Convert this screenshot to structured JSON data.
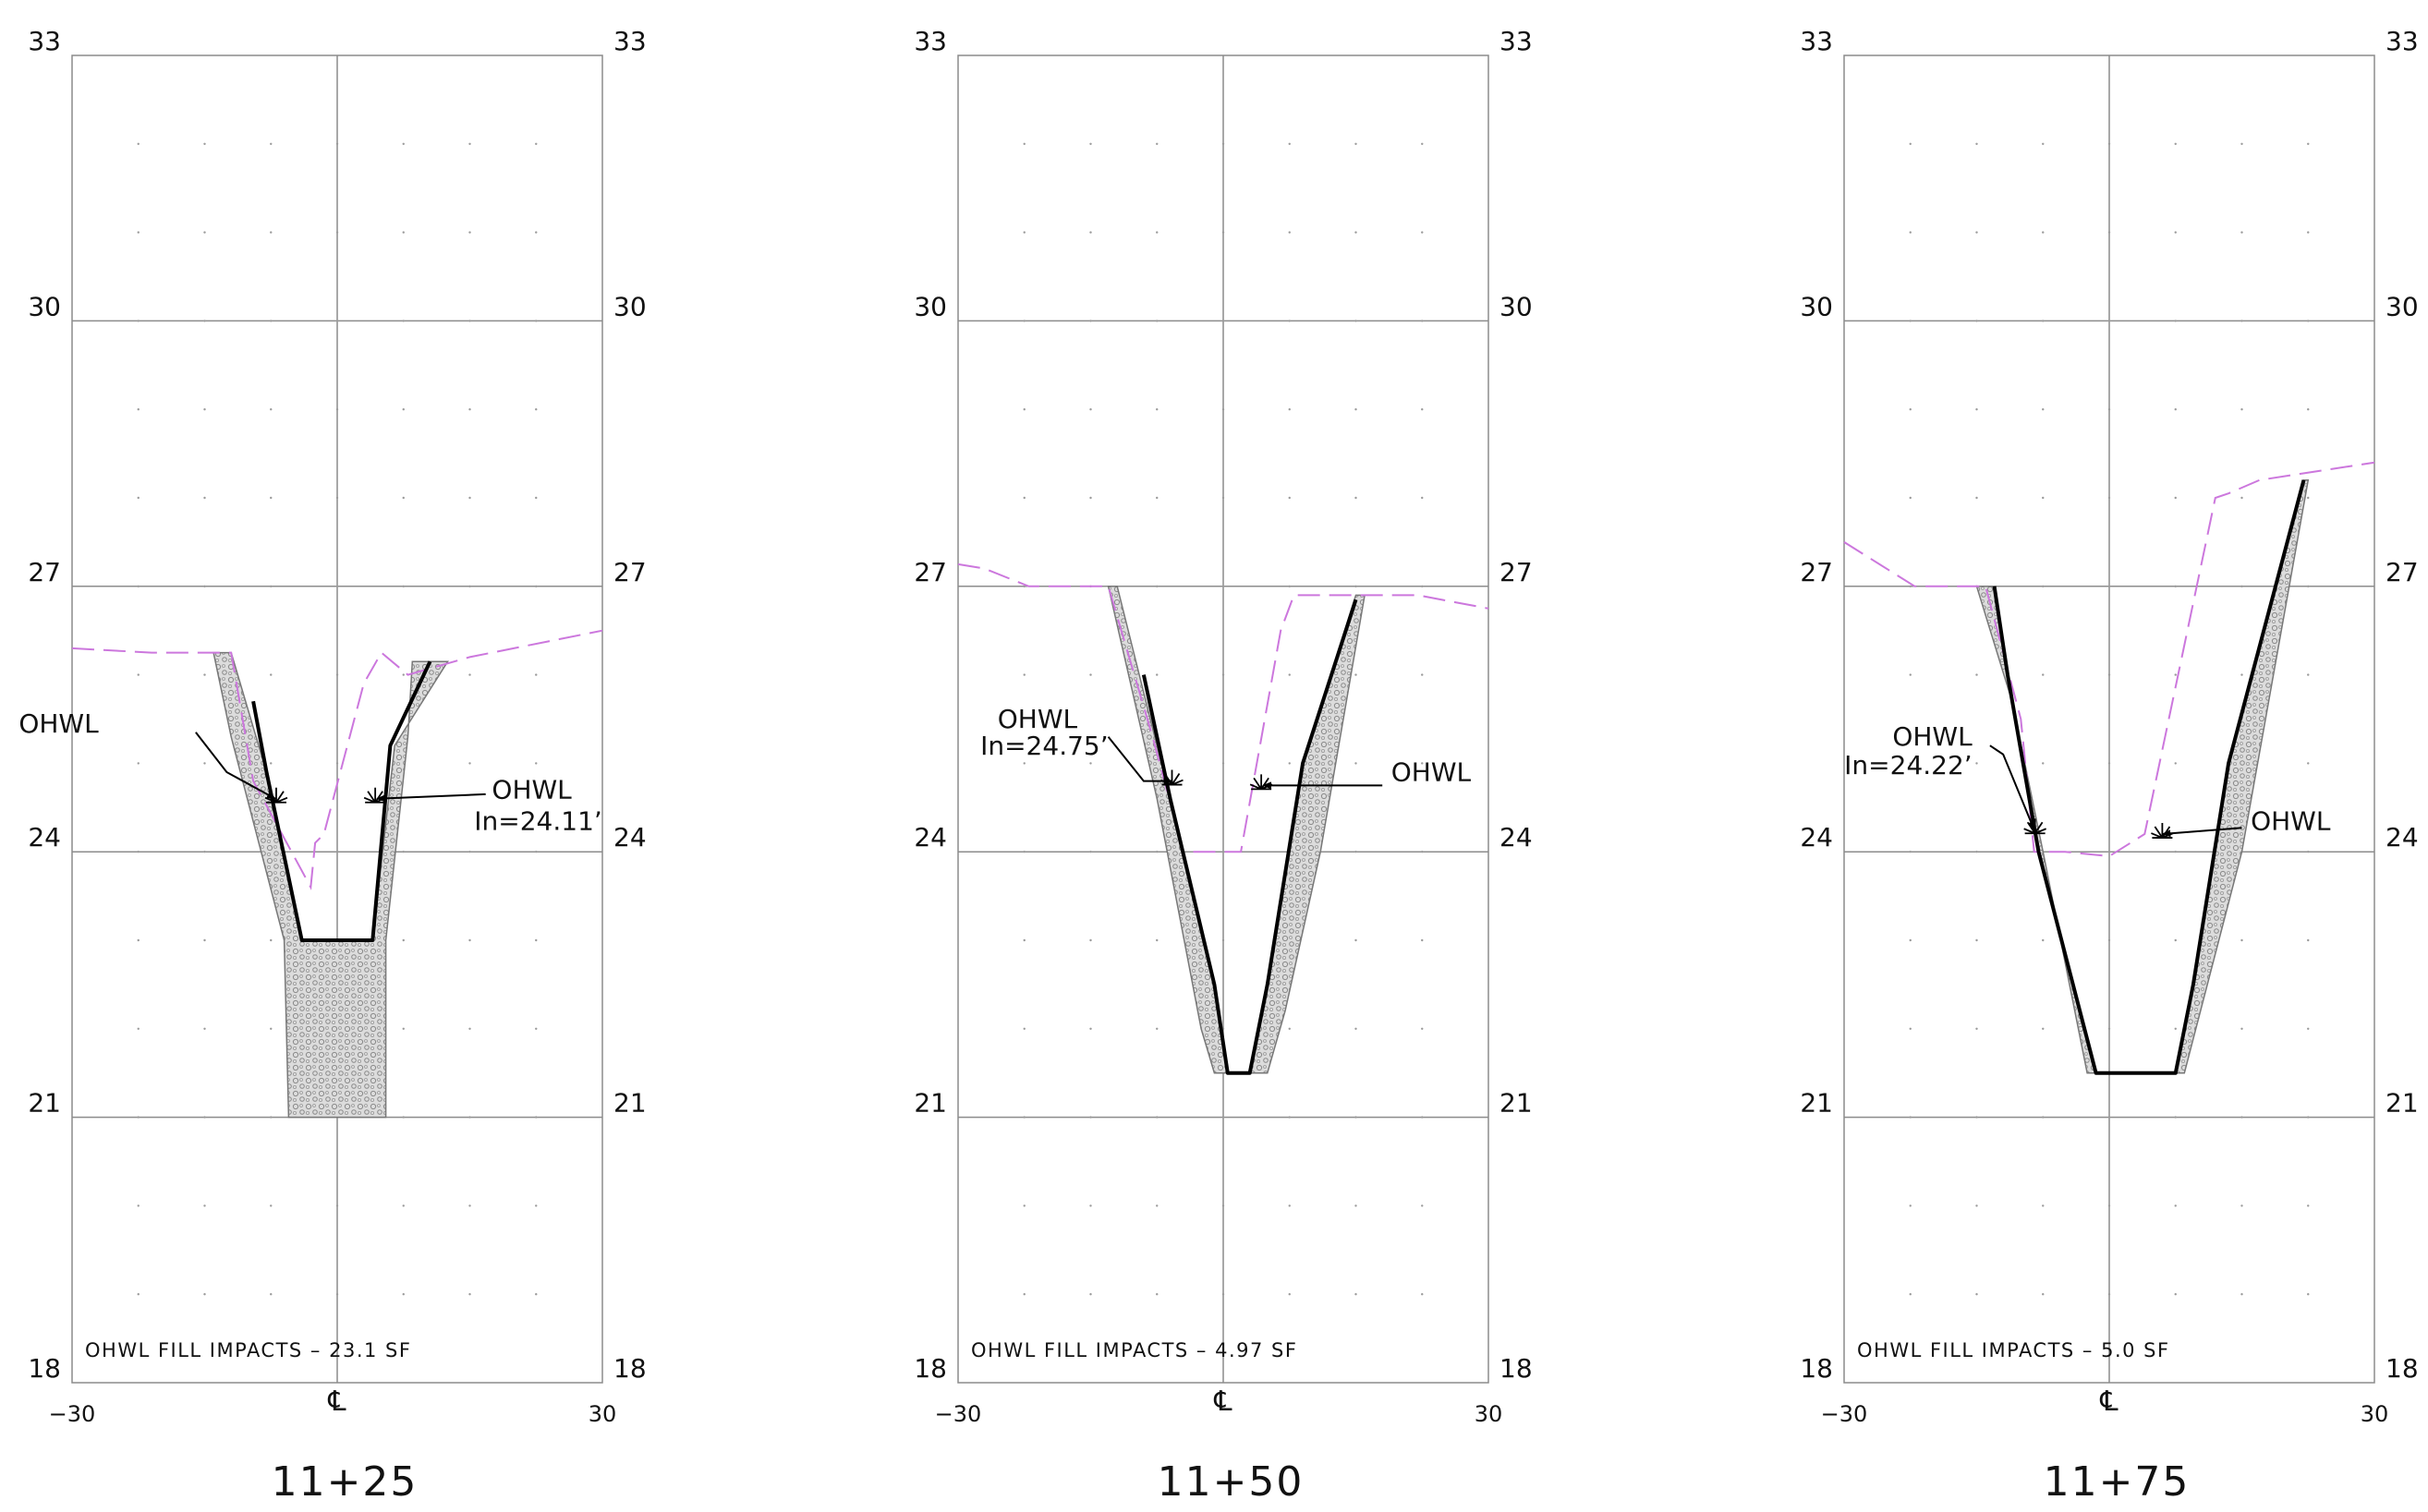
{
  "colors": {
    "grid": "#8c8c8c",
    "section_line": "#000000",
    "existing_ground": "#cc77dd",
    "riprap_fill": "#d8d8d8",
    "riprap_edge": "#777777",
    "text": "#111111"
  },
  "axis": {
    "x_min": -30,
    "x_max": 30,
    "y_min": 18,
    "y_max": 33,
    "y_ticks": [
      18,
      21,
      24,
      27,
      30,
      33
    ],
    "x_min_label": "−30",
    "x_max_label": "30",
    "centerline_symbol": "℄"
  },
  "sections": [
    {
      "station": "11+25",
      "impact_note": "OHWL FILL IMPACTS – 23.1 SF",
      "annotations": [
        {
          "text": "OHWL",
          "label_pos": [
            -27,
            25.35
          ],
          "anchor": "end",
          "leader": [
            [
              -16,
              25.35
            ],
            [
              -12.5,
              24.9
            ],
            [
              -7,
              24.6
            ]
          ],
          "arrow_at": [
            -7,
            24.6
          ]
        },
        {
          "text": "OHWL",
          "label_pos": [
            17.5,
            24.6
          ],
          "anchor": "start",
          "leader": [
            [
              16.8,
              24.65
            ],
            [
              4.5,
              24.6
            ]
          ],
          "arrow_at": [
            4.5,
            24.6
          ]
        },
        {
          "text": "In=24.11’",
          "label_pos": [
            15.5,
            24.25
          ],
          "anchor": "start"
        }
      ],
      "ohwl_symbols": [
        [
          -6.9,
          24.6
        ],
        [
          4.3,
          24.6
        ]
      ],
      "existing_ground": [
        [
          -30,
          26.3
        ],
        [
          -21,
          26.25
        ],
        [
          -12,
          26.25
        ],
        [
          -9.5,
          24.8
        ],
        [
          -3,
          23.6
        ],
        [
          -2.5,
          24.1
        ],
        [
          -1.5,
          24.2
        ],
        [
          3,
          25.9
        ],
        [
          5,
          26.25
        ],
        [
          8,
          26.0
        ],
        [
          15,
          26.2
        ],
        [
          30,
          26.5
        ]
      ],
      "design_line": [
        [
          -9.5,
          25.7
        ],
        [
          -8,
          24.9
        ],
        [
          -4,
          23.0
        ],
        [
          4,
          23.0
        ],
        [
          6,
          25.2
        ],
        [
          10.5,
          26.15
        ]
      ],
      "riprap": [
        [
          -14,
          26.25
        ],
        [
          -12,
          26.25
        ],
        [
          -8,
          24.9
        ],
        [
          -4,
          23.0
        ],
        [
          4,
          23.0
        ],
        [
          6.5,
          25.2
        ],
        [
          12.5,
          26.15
        ],
        [
          8.5,
          26.15
        ],
        [
          8,
          25.3
        ],
        [
          5.5,
          23.0
        ],
        [
          5.5,
          21.0
        ],
        [
          -5.5,
          21.0
        ],
        [
          -6,
          23.0
        ],
        [
          -12,
          25.3
        ]
      ]
    },
    {
      "station": "11+50",
      "impact_note": "OHWL FILL IMPACTS – 4.97 SF",
      "annotations": [
        {
          "text": "OHWL",
          "label_pos": [
            -16.5,
            25.4
          ],
          "anchor": "end",
          "leader": [
            [
              -13,
              25.3
            ],
            [
              -9,
              24.8
            ],
            [
              -5.8,
              24.8
            ]
          ],
          "arrow_at": [
            -5.8,
            24.8
          ]
        },
        {
          "text": "In=24.75’",
          "label_pos": [
            -13,
            25.1
          ],
          "anchor": "end"
        },
        {
          "text": "OHWL",
          "label_pos": [
            19,
            24.8
          ],
          "anchor": "start",
          "leader": [
            [
              18,
              24.75
            ],
            [
              4.5,
              24.75
            ]
          ],
          "arrow_at": [
            4.5,
            24.75
          ]
        }
      ],
      "ohwl_symbols": [
        [
          -5.8,
          24.8
        ],
        [
          4.3,
          24.75
        ]
      ],
      "existing_ground": [
        [
          -30,
          27.25
        ],
        [
          -27,
          27.2
        ],
        [
          -22,
          27.0
        ],
        [
          -13,
          27.0
        ],
        [
          -8,
          25.3
        ],
        [
          -4.5,
          24.0
        ],
        [
          2,
          24.0
        ],
        [
          6.5,
          26.5
        ],
        [
          8,
          26.9
        ],
        [
          12,
          26.9
        ],
        [
          22,
          26.9
        ],
        [
          30,
          26.75
        ]
      ],
      "design_line": [
        [
          -9,
          26.0
        ],
        [
          -6,
          24.6
        ],
        [
          -1,
          22.5
        ],
        [
          0.5,
          21.5
        ],
        [
          3,
          21.5
        ],
        [
          5,
          22.5
        ],
        [
          9,
          25.0
        ],
        [
          15,
          26.85
        ]
      ],
      "riprap": [
        [
          -13,
          27.0
        ],
        [
          -12,
          27.0
        ],
        [
          -6,
          24.6
        ],
        [
          -1,
          22.5
        ],
        [
          0.5,
          21.5
        ],
        [
          3,
          21.5
        ],
        [
          5,
          22.5
        ],
        [
          9,
          25.0
        ],
        [
          15,
          26.9
        ],
        [
          16,
          26.9
        ],
        [
          11,
          24.0
        ],
        [
          7,
          22.2
        ],
        [
          5,
          21.5
        ],
        [
          -1,
          21.5
        ],
        [
          -2.5,
          22.0
        ],
        [
          -7.5,
          24.6
        ]
      ]
    },
    {
      "station": "11+75",
      "impact_note": "OHWL FILL IMPACTS – 5.0 SF",
      "annotations": [
        {
          "text": "OHWL",
          "label_pos": [
            -15.5,
            25.2
          ],
          "anchor": "end",
          "leader": [
            [
              -13.5,
              25.2
            ],
            [
              -12,
              25.1
            ],
            [
              -8.5,
              24.25
            ]
          ],
          "arrow_at": [
            -8.5,
            24.25
          ]
        },
        {
          "text": "In=24.22’",
          "label_pos": [
            -15.5,
            24.88
          ],
          "anchor": "end"
        },
        {
          "text": "OHWL",
          "label_pos": [
            16,
            24.25
          ],
          "anchor": "start",
          "leader": [
            [
              15,
              24.27
            ],
            [
              6,
              24.2
            ]
          ],
          "arrow_at": [
            6,
            24.2
          ]
        }
      ],
      "ohwl_symbols": [
        [
          -8.4,
          24.25
        ],
        [
          6,
          24.2
        ]
      ],
      "existing_ground": [
        [
          -30,
          27.5
        ],
        [
          -22,
          27.0
        ],
        [
          -14,
          27.0
        ],
        [
          -10,
          25.5
        ],
        [
          -8.5,
          24.0
        ],
        [
          -5,
          24.0
        ],
        [
          0,
          23.95
        ],
        [
          4,
          24.2
        ],
        [
          12,
          28.0
        ],
        [
          13.5,
          28.05
        ],
        [
          17,
          28.2
        ],
        [
          30,
          28.4
        ]
      ],
      "design_line": [
        [
          -13,
          27.0
        ],
        [
          -11.5,
          26.0
        ],
        [
          -8,
          24.0
        ],
        [
          -1.5,
          21.5
        ],
        [
          7.5,
          21.5
        ],
        [
          9.5,
          22.5
        ],
        [
          13.5,
          25.0
        ],
        [
          22,
          28.2
        ]
      ],
      "riprap": [
        [
          -15,
          27.0
        ],
        [
          -13,
          27.0
        ],
        [
          -11.5,
          26.0
        ],
        [
          -8,
          24.0
        ],
        [
          -1.5,
          21.5
        ],
        [
          7.5,
          21.5
        ],
        [
          9.5,
          22.5
        ],
        [
          13.5,
          25.0
        ],
        [
          22,
          28.2
        ],
        [
          22.5,
          28.2
        ],
        [
          15,
          24.0
        ],
        [
          8.5,
          21.5
        ],
        [
          -2.5,
          21.5
        ],
        [
          -7.5,
          24.0
        ],
        [
          -11,
          25.7
        ]
      ]
    }
  ]
}
